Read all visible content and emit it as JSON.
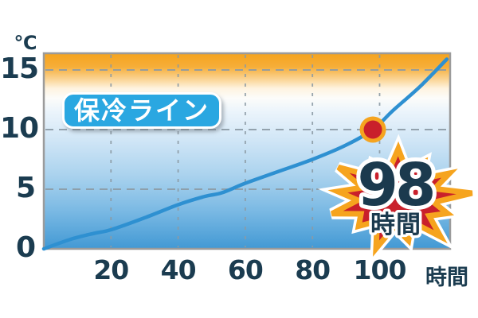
{
  "badge": {
    "label": "保冷ライン"
  },
  "burst": {
    "value": "98",
    "unit": "時間"
  },
  "axes": {
    "y_unit": "℃",
    "x_unit": "時間"
  },
  "chart_data": {
    "type": "line",
    "title": "保冷ライン (cooling retention curve)",
    "xlabel": "時間",
    "ylabel": "℃",
    "xlim": [
      0,
      121
    ],
    "ylim": [
      0,
      16.4
    ],
    "xticks": [
      20,
      40,
      60,
      80,
      100
    ],
    "yticks": [
      0,
      5,
      10,
      15
    ],
    "grid": true,
    "legend_position": "none",
    "series": [
      {
        "name": "保冷ライン",
        "x": [
          0,
          8,
          15,
          20,
          30,
          40,
          48,
          53,
          60,
          70,
          80,
          90,
          98,
          104,
          112,
          120
        ],
        "y": [
          0,
          0.8,
          1.3,
          1.6,
          2.6,
          3.7,
          4.4,
          4.7,
          5.5,
          6.5,
          7.5,
          8.7,
          10,
          11.6,
          13.6,
          15.9
        ]
      }
    ],
    "highlight_point": {
      "x": 98,
      "y": 10,
      "label": "98時間"
    },
    "colors": {
      "line": "#2E90D1",
      "dot_fill": "#C9202B",
      "dot_ring": "#F5A41F",
      "badge_bg": "#2AA7E1",
      "star_fill": "#C9202B",
      "star_border": "#F6A41E",
      "tick_text": "#1B3C50",
      "grid": "#8C9BA5",
      "plot_border": "#9B9B9B",
      "bg_gradient_top": "#F5A31D",
      "bg_gradient_bottom": "#4299D4"
    }
  }
}
